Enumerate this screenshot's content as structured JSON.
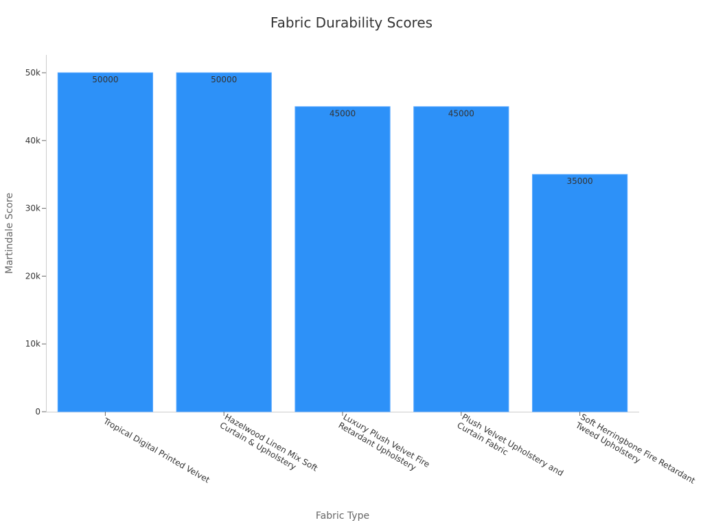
{
  "chart_data": {
    "type": "bar",
    "title": "Fabric Durability Scores",
    "xlabel": "Fabric Type",
    "ylabel": "Martindale Score",
    "ylim": [
      0,
      52500
    ],
    "yticks": [
      {
        "value": 0,
        "label": "0"
      },
      {
        "value": 10000,
        "label": "10k"
      },
      {
        "value": 20000,
        "label": "20k"
      },
      {
        "value": 30000,
        "label": "30k"
      },
      {
        "value": 40000,
        "label": "40k"
      },
      {
        "value": 50000,
        "label": "50k"
      }
    ],
    "categories": [
      [
        "Tropical Digital Printed Velvet"
      ],
      [
        "Hazelwood Linen Mix Soft",
        "Curtain & Upholstery"
      ],
      [
        "Luxury Plush Velvet Fire",
        "Retardant Upholstery"
      ],
      [
        "Plush Velvet Upholstery and",
        "Curtain Fabric"
      ],
      [
        "Soft Herringbone Fire Retardant",
        "Tweed Upholstery"
      ]
    ],
    "values": [
      50000,
      50000,
      45000,
      45000,
      35000
    ],
    "data_labels": [
      "50000",
      "50000",
      "45000",
      "45000",
      "35000"
    ],
    "bar_color": "#2d91f8",
    "grid": false,
    "legend": "none"
  }
}
